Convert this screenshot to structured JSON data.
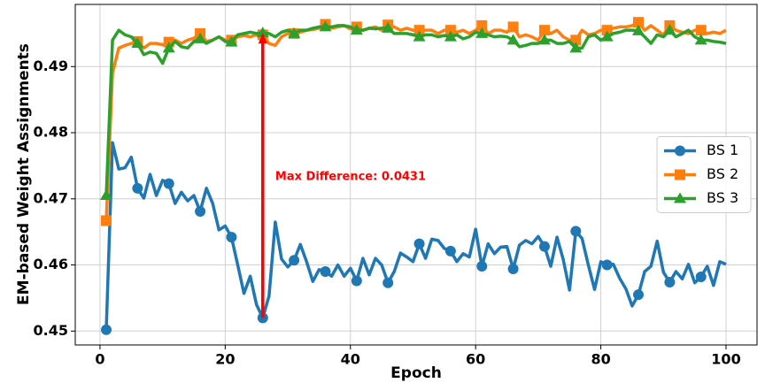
{
  "chart_data": {
    "type": "line",
    "xlabel": "Epoch",
    "ylabel": "EM-based Weight Assignments",
    "x": [
      1,
      2,
      3,
      4,
      5,
      6,
      7,
      8,
      9,
      10,
      11,
      12,
      13,
      14,
      15,
      16,
      17,
      18,
      19,
      20,
      21,
      22,
      23,
      24,
      25,
      26,
      27,
      28,
      29,
      30,
      31,
      32,
      33,
      34,
      35,
      36,
      37,
      38,
      39,
      40,
      41,
      42,
      43,
      44,
      45,
      46,
      47,
      48,
      49,
      50,
      51,
      52,
      53,
      54,
      55,
      56,
      57,
      58,
      59,
      60,
      61,
      62,
      63,
      64,
      65,
      66,
      67,
      68,
      69,
      70,
      71,
      72,
      73,
      74,
      75,
      76,
      77,
      78,
      79,
      80,
      81,
      82,
      83,
      84,
      85,
      86,
      87,
      88,
      89,
      90,
      91,
      92,
      93,
      94,
      95,
      96,
      97,
      98,
      99,
      100
    ],
    "series": [
      {
        "name": "BS 1",
        "color": "#1f77b4",
        "marker": "circle",
        "values": [
          0.4502,
          0.4785,
          0.4745,
          0.4747,
          0.4763,
          0.4716,
          0.4701,
          0.4737,
          0.4705,
          0.4728,
          0.4723,
          0.4693,
          0.471,
          0.4697,
          0.4705,
          0.4681,
          0.4716,
          0.4693,
          0.4653,
          0.4659,
          0.4642,
          0.46,
          0.4557,
          0.4583,
          0.454,
          0.452,
          0.4553,
          0.4665,
          0.4609,
          0.4597,
          0.4607,
          0.4631,
          0.4605,
          0.4575,
          0.4593,
          0.459,
          0.4583,
          0.46,
          0.4583,
          0.4595,
          0.4576,
          0.461,
          0.4585,
          0.461,
          0.46,
          0.4573,
          0.459,
          0.4618,
          0.4612,
          0.4605,
          0.4632,
          0.461,
          0.4639,
          0.4637,
          0.4625,
          0.4621,
          0.4605,
          0.4617,
          0.4612,
          0.4654,
          0.4598,
          0.4632,
          0.4617,
          0.4627,
          0.4628,
          0.4594,
          0.463,
          0.4637,
          0.4632,
          0.4643,
          0.4628,
          0.4598,
          0.4642,
          0.4608,
          0.4562,
          0.4651,
          0.464,
          0.46,
          0.4563,
          0.4605,
          0.46,
          0.4601,
          0.458,
          0.4564,
          0.4538,
          0.4555,
          0.459,
          0.4598,
          0.4636,
          0.4589,
          0.4574,
          0.459,
          0.4579,
          0.4601,
          0.4573,
          0.4582,
          0.4598,
          0.4569,
          0.4605,
          0.4601
        ]
      },
      {
        "name": "BS 2",
        "color": "#ff7f0e",
        "marker": "square",
        "values": [
          0.4667,
          0.489,
          0.4928,
          0.4932,
          0.4935,
          0.4938,
          0.4928,
          0.4935,
          0.4935,
          0.4933,
          0.4937,
          0.494,
          0.4935,
          0.494,
          0.4943,
          0.495,
          0.4938,
          0.494,
          0.4945,
          0.494,
          0.494,
          0.4945,
          0.4947,
          0.4945,
          0.4948,
          0.4948,
          0.4935,
          0.4932,
          0.4945,
          0.495,
          0.495,
          0.4952,
          0.4955,
          0.4956,
          0.4958,
          0.4964,
          0.4958,
          0.496,
          0.4962,
          0.4957,
          0.496,
          0.4955,
          0.4958,
          0.496,
          0.4955,
          0.4963,
          0.496,
          0.4955,
          0.4958,
          0.4955,
          0.4955,
          0.4955,
          0.4955,
          0.495,
          0.4955,
          0.4955,
          0.4952,
          0.4955,
          0.495,
          0.4955,
          0.4962,
          0.495,
          0.4955,
          0.4955,
          0.4952,
          0.496,
          0.4945,
          0.4948,
          0.4945,
          0.494,
          0.4955,
          0.495,
          0.4955,
          0.4945,
          0.494,
          0.494,
          0.4955,
          0.4948,
          0.495,
          0.4955,
          0.4955,
          0.4958,
          0.496,
          0.496,
          0.4962,
          0.4967,
          0.4955,
          0.4962,
          0.4955,
          0.4948,
          0.4962,
          0.4955,
          0.4952,
          0.495,
          0.4955,
          0.4955,
          0.495,
          0.4952,
          0.495,
          0.4955
        ]
      },
      {
        "name": "BS 3",
        "color": "#2ca02c",
        "marker": "triangle",
        "values": [
          0.4705,
          0.494,
          0.4955,
          0.4948,
          0.4945,
          0.4935,
          0.4918,
          0.4922,
          0.492,
          0.4905,
          0.4928,
          0.4938,
          0.493,
          0.4928,
          0.4938,
          0.4942,
          0.4935,
          0.494,
          0.4945,
          0.4938,
          0.4937,
          0.4948,
          0.495,
          0.4952,
          0.495,
          0.4951,
          0.495,
          0.4945,
          0.4952,
          0.4955,
          0.495,
          0.4955,
          0.4955,
          0.4958,
          0.496,
          0.496,
          0.496,
          0.4962,
          0.4962,
          0.496,
          0.4955,
          0.4955,
          0.4958,
          0.4957,
          0.4958,
          0.4958,
          0.495,
          0.495,
          0.495,
          0.4948,
          0.4945,
          0.4948,
          0.4948,
          0.4945,
          0.4947,
          0.4945,
          0.4948,
          0.4942,
          0.4945,
          0.4952,
          0.495,
          0.4948,
          0.4945,
          0.4946,
          0.4945,
          0.494,
          0.493,
          0.4932,
          0.4935,
          0.4935,
          0.494,
          0.494,
          0.4935,
          0.4935,
          0.4938,
          0.4928,
          0.4928,
          0.4945,
          0.4948,
          0.494,
          0.4945,
          0.495,
          0.4952,
          0.4955,
          0.4955,
          0.4954,
          0.4945,
          0.4935,
          0.4948,
          0.4945,
          0.4955,
          0.4945,
          0.495,
          0.4955,
          0.4945,
          0.494,
          0.494,
          0.4938,
          0.4937,
          0.4935
        ]
      }
    ],
    "markevery": 5,
    "xlim": [
      -3.95,
      104.95
    ],
    "ylim": [
      0.4479,
      0.4994
    ],
    "xticks": [
      0,
      20,
      40,
      60,
      80,
      100
    ],
    "yticks": [
      0.45,
      0.46,
      0.47,
      0.48,
      0.49
    ],
    "grid": true,
    "legend": "center right",
    "annotation": {
      "text": "Max Difference: 0.0431",
      "x": 28,
      "y": 0.4733,
      "color": "#ff0000",
      "arrow": {
        "x": 26,
        "y_start": 0.452,
        "y_end": 0.4951
      }
    }
  }
}
